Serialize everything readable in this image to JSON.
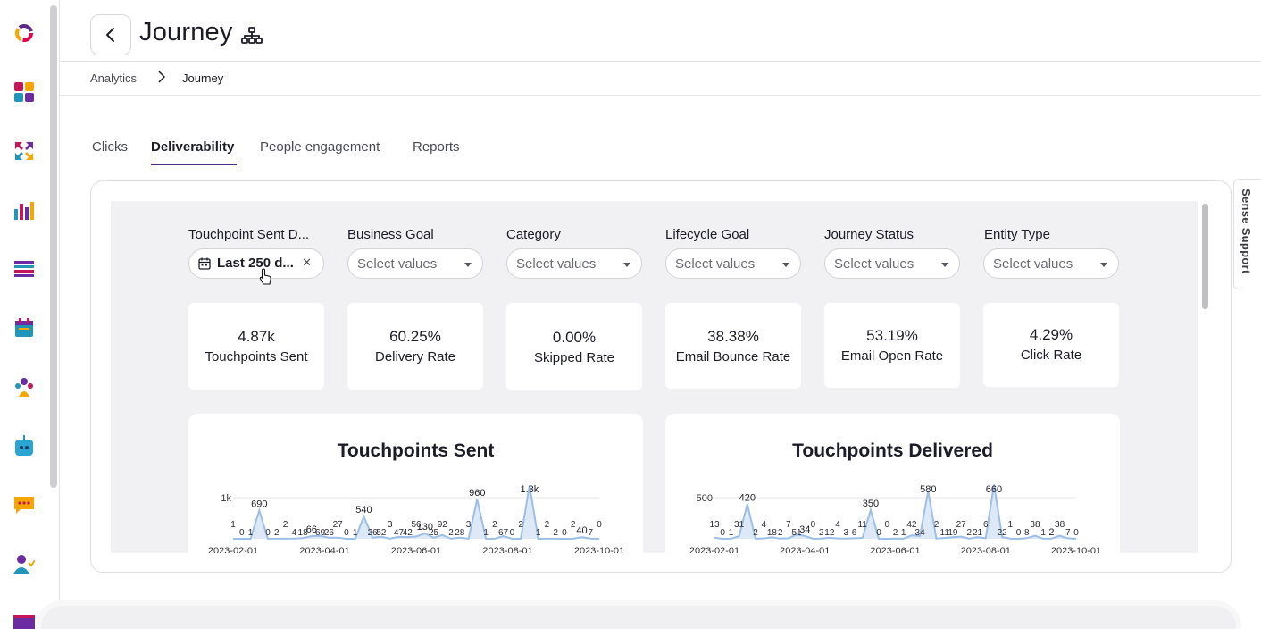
{
  "header": {
    "title": "Journey"
  },
  "breadcrumb": {
    "items": [
      "Analytics",
      "Journey"
    ]
  },
  "tabs": [
    {
      "label": "Clicks",
      "active": false
    },
    {
      "label": "Deliverability",
      "active": true
    },
    {
      "label": "People engagement",
      "active": false
    },
    {
      "label": "Reports",
      "active": false
    }
  ],
  "filters": [
    {
      "label": "Touchpoint Sent D...",
      "value": "Last 250 d...",
      "icon": "calendar-icon"
    },
    {
      "label": "Business Goal",
      "placeholder": "Select values"
    },
    {
      "label": "Category",
      "placeholder": "Select values"
    },
    {
      "label": "Lifecycle Goal",
      "placeholder": "Select values"
    },
    {
      "label": "Journey Status",
      "placeholder": "Select values"
    },
    {
      "label": "Entity Type",
      "placeholder": "Select values"
    }
  ],
  "kpis": [
    {
      "value": "4.87k",
      "label": "Touchpoints Sent"
    },
    {
      "value": "60.25%",
      "label": "Delivery Rate"
    },
    {
      "value": "0.00%",
      "label": "Skipped Rate"
    },
    {
      "value": "38.38%",
      "label": "Email Bounce Rate"
    },
    {
      "value": "53.19%",
      "label": "Email Open Rate"
    },
    {
      "value": "4.29%",
      "label": "Click Rate"
    }
  ],
  "sense_support": "Sense Support",
  "colors": {
    "accent": "#4b2b7f",
    "series": "#9dbfe6",
    "dash_bg": "#f1f1f3"
  },
  "chart_data": [
    {
      "type": "line",
      "title": "Touchpoints Sent",
      "x_ticks": [
        "2023-02-01",
        "2023-04-01",
        "2023-06-01",
        "2023-08-01",
        "2023-10-01"
      ],
      "y_ticks": [
        "1k"
      ],
      "ylim": [
        0,
        1000
      ],
      "peaks": [
        {
          "label": "690",
          "value": 690
        },
        {
          "label": "66",
          "value": 66
        },
        {
          "label": "540",
          "value": 540
        },
        {
          "label": "130",
          "value": 130
        },
        {
          "label": "960",
          "value": 960
        },
        {
          "label": "1.3k",
          "value": 1300
        },
        {
          "label": "40",
          "value": 40
        }
      ],
      "point_labels": [
        "1",
        "0",
        "1",
        "115",
        "0",
        "2",
        "2",
        "4",
        "18",
        "7",
        "69",
        "26",
        "27",
        "0",
        "1",
        "27",
        "26",
        "52",
        "3",
        "47",
        "42",
        "56",
        "4",
        "25",
        "92",
        "2",
        "28",
        "3",
        "0",
        "1",
        "2",
        "67",
        "0",
        "2",
        "33",
        "1",
        "2",
        "2",
        "0",
        "2",
        "2",
        "7",
        "0"
      ]
    },
    {
      "type": "line",
      "title": "Touchpoints Delivered",
      "x_ticks": [
        "2023-02-01",
        "2023-04-01",
        "2023-06-01",
        "2023-08-01",
        "2023-10-01"
      ],
      "y_ticks": [
        "500"
      ],
      "ylim": [
        0,
        500
      ],
      "peaks": [
        {
          "label": "420",
          "value": 420
        },
        {
          "label": "34",
          "value": 34
        },
        {
          "label": "350",
          "value": 350
        },
        {
          "label": "580",
          "value": 580
        },
        {
          "label": "660",
          "value": 660
        },
        {
          "label": "2",
          "value": 2
        }
      ],
      "point_labels": [
        "13",
        "0",
        "1",
        "31",
        "12",
        "2",
        "4",
        "18",
        "2",
        "7",
        "51",
        "26",
        "0",
        "2",
        "12",
        "4",
        "3",
        "6",
        "11",
        "0",
        "0",
        "0",
        "2",
        "1",
        "42",
        "34",
        "47",
        "2",
        "11",
        "19",
        "27",
        "2",
        "21",
        "6",
        "2",
        "22",
        "1",
        "0",
        "8",
        "38",
        "1",
        "0",
        "38",
        "7",
        "0"
      ]
    }
  ]
}
